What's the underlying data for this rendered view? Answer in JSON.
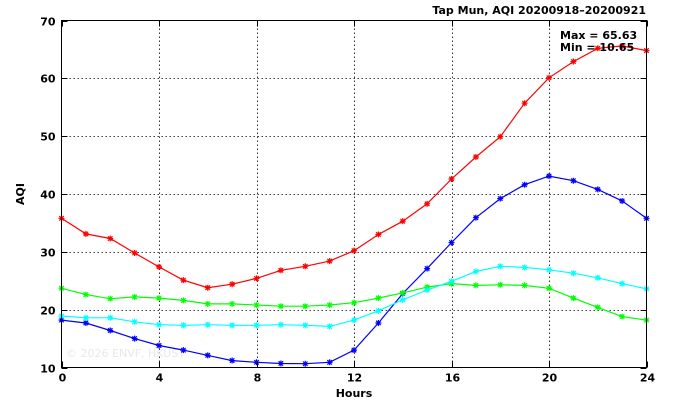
{
  "chart_data": {
    "type": "line",
    "title": "Tap Mun, AQI 20200918–20200921",
    "xlabel": "Hours",
    "ylabel": "AQI",
    "xlim": [
      0,
      24
    ],
    "ylim": [
      10,
      70
    ],
    "x_ticks": [
      0,
      4,
      8,
      12,
      16,
      20,
      24
    ],
    "y_ticks": [
      10,
      20,
      30,
      40,
      50,
      60,
      70
    ],
    "grid": true,
    "annotations": [
      "Max = 65.63",
      "Min = 10.65"
    ],
    "watermark": "© 2026  ENVF, HKUST",
    "x": [
      0,
      1,
      2,
      3,
      4,
      5,
      6,
      7,
      8,
      9,
      10,
      11,
      12,
      13,
      14,
      15,
      16,
      17,
      18,
      19,
      20,
      21,
      22,
      23,
      24
    ],
    "series": [
      {
        "color": "#ff0000",
        "values": [
          35.8,
          33.1,
          32.3,
          29.8,
          27.4,
          25.1,
          23.8,
          24.4,
          25.4,
          26.8,
          27.5,
          28.4,
          30.2,
          33.0,
          35.3,
          38.3,
          42.6,
          46.4,
          49.9,
          55.7,
          60.1,
          62.9,
          65.2,
          65.6,
          64.8
        ]
      },
      {
        "color": "#0000ff",
        "values": [
          18.2,
          17.7,
          16.4,
          15.0,
          13.8,
          13.0,
          12.1,
          11.2,
          10.9,
          10.7,
          10.65,
          10.9,
          13.0,
          17.7,
          22.8,
          27.1,
          31.6,
          35.9,
          39.2,
          41.6,
          43.1,
          42.3,
          40.8,
          38.8,
          35.8
        ]
      },
      {
        "color": "#00ff00",
        "values": [
          23.7,
          22.6,
          21.9,
          22.2,
          22.0,
          21.6,
          21.0,
          21.0,
          20.8,
          20.6,
          20.6,
          20.8,
          21.2,
          22.0,
          22.9,
          23.9,
          24.5,
          24.2,
          24.3,
          24.2,
          23.7,
          22.0,
          20.4,
          18.8,
          18.2
        ]
      },
      {
        "color": "#00ffff",
        "values": [
          18.9,
          18.6,
          18.6,
          17.9,
          17.4,
          17.3,
          17.4,
          17.3,
          17.3,
          17.4,
          17.3,
          17.1,
          18.2,
          19.8,
          21.7,
          23.4,
          24.9,
          26.6,
          27.5,
          27.3,
          26.9,
          26.3,
          25.5,
          24.5,
          23.6
        ]
      }
    ]
  }
}
